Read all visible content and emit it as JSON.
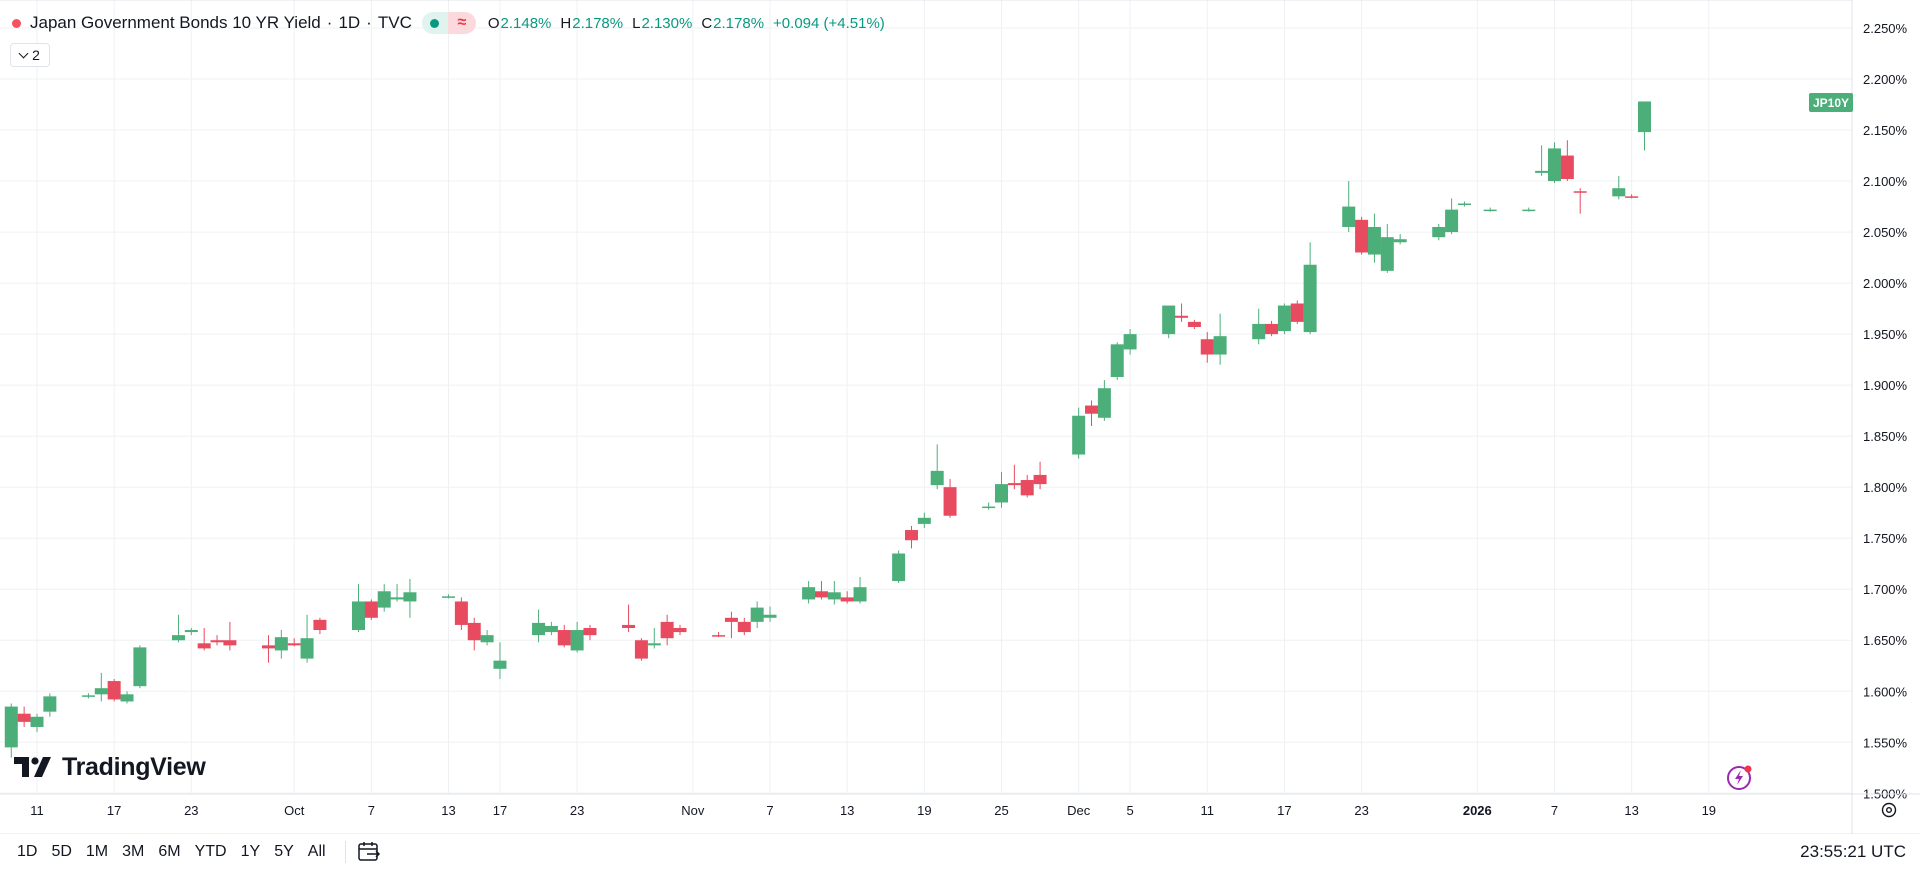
{
  "legend": {
    "title": "Japan Government Bonds 10 YR Yield",
    "interval": "1D",
    "exchange": "TVC",
    "dot": "·",
    "o_label": "O",
    "o_value": "2.148%",
    "h_label": "H",
    "h_value": "2.178%",
    "l_label": "L",
    "l_value": "2.130%",
    "c_label": "C",
    "c_value": "2.178%",
    "change": "+0.094 (+4.51%)",
    "vis_icon": "≈"
  },
  "collapse": {
    "count": "2"
  },
  "ticker_badge": "JP10Y",
  "watermark": "TradingView",
  "bottom_bar": {
    "ranges": [
      "1D",
      "5D",
      "1M",
      "3M",
      "6M",
      "YTD",
      "1Y",
      "5Y",
      "All"
    ],
    "clock": "23:55:21 UTC"
  },
  "icons": [
    "status-dot-icon",
    "eye-visibility-icon",
    "chevron-down-icon",
    "tradingview-logo-icon",
    "calendar-goto-icon",
    "lightning-icon",
    "gear-icon"
  ],
  "colors": {
    "up": "#4caf7a",
    "down": "#e84a5f",
    "grid": "#eef1f4",
    "axis_text": "#131722"
  },
  "chart_data": {
    "type": "candlestick",
    "y_unit": "%",
    "ylim": [
      1.5,
      2.27
    ],
    "y_ticks": [
      "1.500%",
      "1.550%",
      "1.600%",
      "1.650%",
      "1.700%",
      "1.750%",
      "1.800%",
      "1.850%",
      "1.900%",
      "1.950%",
      "2.000%",
      "2.050%",
      "2.100%",
      "2.150%",
      "2.200%",
      "2.250%"
    ],
    "y_tick_values": [
      1.5,
      1.55,
      1.6,
      1.65,
      1.7,
      1.75,
      1.8,
      1.85,
      1.9,
      1.95,
      2.0,
      2.05,
      2.1,
      2.15,
      2.2,
      2.25
    ],
    "x_ticks": [
      {
        "label": "11",
        "date": "2025-09-11"
      },
      {
        "label": "17",
        "date": "2025-09-17"
      },
      {
        "label": "23",
        "date": "2025-09-23"
      },
      {
        "label": "Oct",
        "date": "2025-10-01"
      },
      {
        "label": "7",
        "date": "2025-10-07"
      },
      {
        "label": "13",
        "date": "2025-10-13"
      },
      {
        "label": "17",
        "date": "2025-10-17"
      },
      {
        "label": "23",
        "date": "2025-10-23"
      },
      {
        "label": "Nov",
        "date": "2025-11-01"
      },
      {
        "label": "7",
        "date": "2025-11-07"
      },
      {
        "label": "13",
        "date": "2025-11-13"
      },
      {
        "label": "19",
        "date": "2025-11-19"
      },
      {
        "label": "25",
        "date": "2025-11-25"
      },
      {
        "label": "Dec",
        "date": "2025-12-01"
      },
      {
        "label": "5",
        "date": "2025-12-05"
      },
      {
        "label": "11",
        "date": "2025-12-11"
      },
      {
        "label": "17",
        "date": "2025-12-17"
      },
      {
        "label": "23",
        "date": "2025-12-23"
      },
      {
        "label": "2026",
        "date": "2026-01-01",
        "bold": true
      },
      {
        "label": "7",
        "date": "2026-01-07"
      },
      {
        "label": "13",
        "date": "2026-01-13"
      },
      {
        "label": "19",
        "date": "2026-01-19"
      }
    ],
    "candles": [
      {
        "date": "2025-09-09",
        "o": 1.545,
        "h": 1.588,
        "l": 1.535,
        "c": 1.585
      },
      {
        "date": "2025-09-10",
        "o": 1.578,
        "h": 1.585,
        "l": 1.565,
        "c": 1.57
      },
      {
        "date": "2025-09-11",
        "o": 1.565,
        "h": 1.578,
        "l": 1.56,
        "c": 1.575
      },
      {
        "date": "2025-09-12",
        "o": 1.58,
        "h": 1.598,
        "l": 1.575,
        "c": 1.595
      },
      {
        "date": "2025-09-15",
        "o": 1.595,
        "h": 1.598,
        "l": 1.593,
        "c": 1.596
      },
      {
        "date": "2025-09-16",
        "o": 1.597,
        "h": 1.618,
        "l": 1.59,
        "c": 1.603
      },
      {
        "date": "2025-09-17",
        "o": 1.61,
        "h": 1.612,
        "l": 1.59,
        "c": 1.592
      },
      {
        "date": "2025-09-18",
        "o": 1.59,
        "h": 1.6,
        "l": 1.588,
        "c": 1.597
      },
      {
        "date": "2025-09-19",
        "o": 1.605,
        "h": 1.645,
        "l": 1.603,
        "c": 1.643
      },
      {
        "date": "2025-09-22",
        "o": 1.65,
        "h": 1.675,
        "l": 1.648,
        "c": 1.655
      },
      {
        "date": "2025-09-23",
        "o": 1.658,
        "h": 1.662,
        "l": 1.655,
        "c": 1.66
      },
      {
        "date": "2025-09-24",
        "o": 1.647,
        "h": 1.662,
        "l": 1.64,
        "c": 1.642
      },
      {
        "date": "2025-09-25",
        "o": 1.65,
        "h": 1.655,
        "l": 1.645,
        "c": 1.648
      },
      {
        "date": "2025-09-26",
        "o": 1.65,
        "h": 1.668,
        "l": 1.64,
        "c": 1.645
      },
      {
        "date": "2025-09-29",
        "o": 1.645,
        "h": 1.655,
        "l": 1.628,
        "c": 1.642
      },
      {
        "date": "2025-09-30",
        "o": 1.64,
        "h": 1.66,
        "l": 1.632,
        "c": 1.653
      },
      {
        "date": "2025-10-01",
        "o": 1.647,
        "h": 1.652,
        "l": 1.644,
        "c": 1.645
      },
      {
        "date": "2025-10-02",
        "o": 1.632,
        "h": 1.675,
        "l": 1.628,
        "c": 1.652
      },
      {
        "date": "2025-10-03",
        "o": 1.67,
        "h": 1.672,
        "l": 1.656,
        "c": 1.66
      },
      {
        "date": "2025-10-06",
        "o": 1.66,
        "h": 1.705,
        "l": 1.658,
        "c": 1.688
      },
      {
        "date": "2025-10-07",
        "o": 1.688,
        "h": 1.69,
        "l": 1.67,
        "c": 1.672
      },
      {
        "date": "2025-10-08",
        "o": 1.682,
        "h": 1.705,
        "l": 1.678,
        "c": 1.698
      },
      {
        "date": "2025-10-09",
        "o": 1.69,
        "h": 1.705,
        "l": 1.688,
        "c": 1.692
      },
      {
        "date": "2025-10-10",
        "o": 1.688,
        "h": 1.71,
        "l": 1.672,
        "c": 1.697
      },
      {
        "date": "2025-10-13",
        "o": 1.693,
        "h": 1.695,
        "l": 1.691,
        "c": 1.693
      },
      {
        "date": "2025-10-14",
        "o": 1.688,
        "h": 1.692,
        "l": 1.66,
        "c": 1.665
      },
      {
        "date": "2025-10-15",
        "o": 1.667,
        "h": 1.672,
        "l": 1.64,
        "c": 1.65
      },
      {
        "date": "2025-10-16",
        "o": 1.648,
        "h": 1.66,
        "l": 1.645,
        "c": 1.655
      },
      {
        "date": "2025-10-17",
        "o": 1.622,
        "h": 1.648,
        "l": 1.612,
        "c": 1.63
      },
      {
        "date": "2025-10-20",
        "o": 1.655,
        "h": 1.68,
        "l": 1.648,
        "c": 1.667
      },
      {
        "date": "2025-10-21",
        "o": 1.658,
        "h": 1.668,
        "l": 1.655,
        "c": 1.664
      },
      {
        "date": "2025-10-22",
        "o": 1.66,
        "h": 1.665,
        "l": 1.643,
        "c": 1.645
      },
      {
        "date": "2025-10-23",
        "o": 1.64,
        "h": 1.668,
        "l": 1.638,
        "c": 1.66
      },
      {
        "date": "2025-10-24",
        "o": 1.662,
        "h": 1.665,
        "l": 1.65,
        "c": 1.655
      },
      {
        "date": "2025-10-27",
        "o": 1.665,
        "h": 1.685,
        "l": 1.658,
        "c": 1.662
      },
      {
        "date": "2025-10-28",
        "o": 1.65,
        "h": 1.652,
        "l": 1.63,
        "c": 1.632
      },
      {
        "date": "2025-10-29",
        "o": 1.645,
        "h": 1.662,
        "l": 1.642,
        "c": 1.647
      },
      {
        "date": "2025-10-30",
        "o": 1.668,
        "h": 1.675,
        "l": 1.645,
        "c": 1.652
      },
      {
        "date": "2025-10-31",
        "o": 1.662,
        "h": 1.665,
        "l": 1.655,
        "c": 1.658
      },
      {
        "date": "2025-11-03",
        "o": 1.655,
        "h": 1.658,
        "l": 1.653,
        "c": 1.654
      },
      {
        "date": "2025-11-04",
        "o": 1.672,
        "h": 1.678,
        "l": 1.652,
        "c": 1.668
      },
      {
        "date": "2025-11-05",
        "o": 1.668,
        "h": 1.672,
        "l": 1.655,
        "c": 1.658
      },
      {
        "date": "2025-11-06",
        "o": 1.668,
        "h": 1.688,
        "l": 1.662,
        "c": 1.682
      },
      {
        "date": "2025-11-07",
        "o": 1.672,
        "h": 1.683,
        "l": 1.668,
        "c": 1.675
      },
      {
        "date": "2025-11-10",
        "o": 1.69,
        "h": 1.708,
        "l": 1.686,
        "c": 1.702
      },
      {
        "date": "2025-11-11",
        "o": 1.698,
        "h": 1.708,
        "l": 1.69,
        "c": 1.692
      },
      {
        "date": "2025-11-12",
        "o": 1.69,
        "h": 1.708,
        "l": 1.685,
        "c": 1.697
      },
      {
        "date": "2025-11-13",
        "o": 1.692,
        "h": 1.698,
        "l": 1.686,
        "c": 1.688
      },
      {
        "date": "2025-11-14",
        "o": 1.688,
        "h": 1.712,
        "l": 1.686,
        "c": 1.702
      },
      {
        "date": "2025-11-17",
        "o": 1.708,
        "h": 1.738,
        "l": 1.706,
        "c": 1.735
      },
      {
        "date": "2025-11-18",
        "o": 1.758,
        "h": 1.762,
        "l": 1.74,
        "c": 1.748
      },
      {
        "date": "2025-11-19",
        "o": 1.764,
        "h": 1.775,
        "l": 1.76,
        "c": 1.77
      },
      {
        "date": "2025-11-20",
        "o": 1.802,
        "h": 1.842,
        "l": 1.798,
        "c": 1.816
      },
      {
        "date": "2025-11-21",
        "o": 1.8,
        "h": 1.808,
        "l": 1.77,
        "c": 1.772
      },
      {
        "date": "2025-11-24",
        "o": 1.78,
        "h": 1.785,
        "l": 1.778,
        "c": 1.781
      },
      {
        "date": "2025-11-25",
        "o": 1.785,
        "h": 1.815,
        "l": 1.78,
        "c": 1.803
      },
      {
        "date": "2025-11-26",
        "o": 1.804,
        "h": 1.822,
        "l": 1.798,
        "c": 1.802
      },
      {
        "date": "2025-11-27",
        "o": 1.807,
        "h": 1.812,
        "l": 1.79,
        "c": 1.792
      },
      {
        "date": "2025-11-28",
        "o": 1.812,
        "h": 1.825,
        "l": 1.798,
        "c": 1.803
      },
      {
        "date": "2025-12-01",
        "o": 1.832,
        "h": 1.878,
        "l": 1.828,
        "c": 1.87
      },
      {
        "date": "2025-12-02",
        "o": 1.88,
        "h": 1.885,
        "l": 1.86,
        "c": 1.872
      },
      {
        "date": "2025-12-03",
        "o": 1.868,
        "h": 1.905,
        "l": 1.865,
        "c": 1.897
      },
      {
        "date": "2025-12-04",
        "o": 1.908,
        "h": 1.942,
        "l": 1.905,
        "c": 1.94
      },
      {
        "date": "2025-12-05",
        "o": 1.935,
        "h": 1.955,
        "l": 1.93,
        "c": 1.95
      },
      {
        "date": "2025-12-08",
        "o": 1.95,
        "h": 1.978,
        "l": 1.946,
        "c": 1.978
      },
      {
        "date": "2025-12-09",
        "o": 1.968,
        "h": 1.98,
        "l": 1.962,
        "c": 1.966
      },
      {
        "date": "2025-12-10",
        "o": 1.962,
        "h": 1.964,
        "l": 1.955,
        "c": 1.957
      },
      {
        "date": "2025-12-11",
        "o": 1.945,
        "h": 1.952,
        "l": 1.922,
        "c": 1.93
      },
      {
        "date": "2025-12-12",
        "o": 1.93,
        "h": 1.97,
        "l": 1.92,
        "c": 1.948
      },
      {
        "date": "2025-12-15",
        "o": 1.945,
        "h": 1.975,
        "l": 1.94,
        "c": 1.96
      },
      {
        "date": "2025-12-16",
        "o": 1.96,
        "h": 1.963,
        "l": 1.948,
        "c": 1.95
      },
      {
        "date": "2025-12-17",
        "o": 1.953,
        "h": 1.98,
        "l": 1.95,
        "c": 1.978
      },
      {
        "date": "2025-12-18",
        "o": 1.98,
        "h": 1.983,
        "l": 1.96,
        "c": 1.962
      },
      {
        "date": "2025-12-19",
        "o": 1.952,
        "h": 2.04,
        "l": 1.95,
        "c": 2.018
      },
      {
        "date": "2025-12-22",
        "o": 2.055,
        "h": 2.1,
        "l": 2.05,
        "c": 2.075
      },
      {
        "date": "2025-12-23",
        "o": 2.062,
        "h": 2.065,
        "l": 2.028,
        "c": 2.03
      },
      {
        "date": "2025-12-24",
        "o": 2.028,
        "h": 2.068,
        "l": 2.02,
        "c": 2.055
      },
      {
        "date": "2025-12-25",
        "o": 2.012,
        "h": 2.058,
        "l": 2.01,
        "c": 2.045
      },
      {
        "date": "2025-12-26",
        "o": 2.04,
        "h": 2.048,
        "l": 2.038,
        "c": 2.043
      },
      {
        "date": "2025-12-29",
        "o": 2.045,
        "h": 2.058,
        "l": 2.042,
        "c": 2.055
      },
      {
        "date": "2025-12-30",
        "o": 2.05,
        "h": 2.083,
        "l": 2.048,
        "c": 2.072
      },
      {
        "date": "2025-12-31",
        "o": 2.077,
        "h": 2.08,
        "l": 2.075,
        "c": 2.078
      },
      {
        "date": "2026-01-02",
        "o": 2.072,
        "h": 2.074,
        "l": 2.07,
        "c": 2.072
      },
      {
        "date": "2026-01-05",
        "o": 2.072,
        "h": 2.074,
        "l": 2.07,
        "c": 2.072
      },
      {
        "date": "2026-01-06",
        "o": 2.108,
        "h": 2.135,
        "l": 2.105,
        "c": 2.11
      },
      {
        "date": "2026-01-07",
        "o": 2.1,
        "h": 2.138,
        "l": 2.098,
        "c": 2.132
      },
      {
        "date": "2026-01-08",
        "o": 2.125,
        "h": 2.14,
        "l": 2.1,
        "c": 2.102
      },
      {
        "date": "2026-01-09",
        "o": 2.09,
        "h": 2.093,
        "l": 2.068,
        "c": 2.089
      },
      {
        "date": "2026-01-12",
        "o": 2.085,
        "h": 2.105,
        "l": 2.082,
        "c": 2.093
      },
      {
        "date": "2026-01-13",
        "o": 2.085,
        "h": 2.087,
        "l": 2.083,
        "c": 2.084
      },
      {
        "date": "2026-01-14",
        "o": 2.148,
        "h": 2.178,
        "l": 2.13,
        "c": 2.178
      }
    ]
  }
}
